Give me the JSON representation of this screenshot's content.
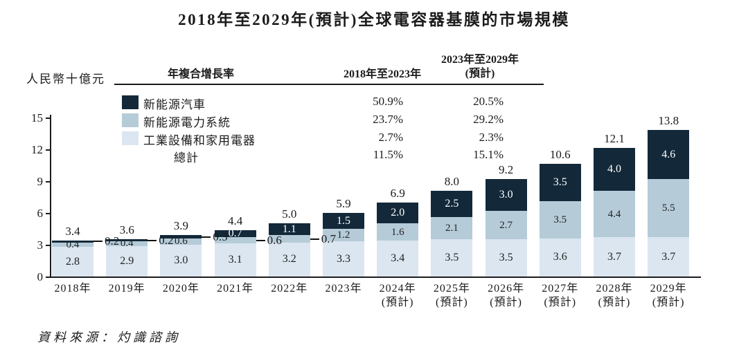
{
  "title": "2018年至2029年(預計)全球電容器基膜的市場規模",
  "y_axis_unit": "人民幣十億元",
  "cagr_table": {
    "header": {
      "title": "年複合增長率",
      "period1": "2018年至2023年",
      "period2_line1": "2023年至2029年",
      "period2_line2": "(預計)"
    },
    "rows": [
      {
        "label": "新能源汽車",
        "swatch_color": "#13293a",
        "cagr_2018_2023": "50.9%",
        "cagr_2023_2029": "20.5%"
      },
      {
        "label": "新能源電力系統",
        "swatch_color": "#b5cbd8",
        "cagr_2018_2023": "23.7%",
        "cagr_2023_2029": "29.2%"
      },
      {
        "label": "工業設備和家用電器",
        "swatch_color": "#dbe6f0",
        "cagr_2018_2023": "2.7%",
        "cagr_2023_2029": "2.3%"
      },
      {
        "label": "總計",
        "swatch_color": "",
        "cagr_2018_2023": "11.5%",
        "cagr_2023_2029": "15.1%"
      }
    ]
  },
  "chart_data": {
    "type": "bar",
    "stacked": true,
    "title": "2018年至2029年(預計)全球電容器基膜的市場規模",
    "ylabel": "人民幣十億元",
    "ylim": [
      0,
      15
    ],
    "yticks": [
      0,
      3,
      6,
      9,
      12,
      15
    ],
    "grid": false,
    "legend_position": "top-left-table",
    "categories": [
      {
        "year": "2018年",
        "note": ""
      },
      {
        "year": "2019年",
        "note": ""
      },
      {
        "year": "2020年",
        "note": ""
      },
      {
        "year": "2021年",
        "note": ""
      },
      {
        "year": "2022年",
        "note": ""
      },
      {
        "year": "2023年",
        "note": ""
      },
      {
        "year": "2024年",
        "note": "(預計)"
      },
      {
        "year": "2025年",
        "note": "(預計)"
      },
      {
        "year": "2026年",
        "note": "(預計)"
      },
      {
        "year": "2027年",
        "note": "(預計)"
      },
      {
        "year": "2028年",
        "note": "(預計)"
      },
      {
        "year": "2029年",
        "note": "(預計)"
      }
    ],
    "series": [
      {
        "name": "工業設備和家用電器",
        "color": "#dbe6f0",
        "values": [
          2.8,
          2.9,
          3.0,
          3.1,
          3.2,
          3.3,
          3.4,
          3.5,
          3.5,
          3.6,
          3.7,
          3.7
        ]
      },
      {
        "name": "新能源電力系統",
        "color": "#b5cbd8",
        "values": [
          0.4,
          0.4,
          0.6,
          0.6,
          0.7,
          1.2,
          1.6,
          2.1,
          2.7,
          3.5,
          4.4,
          5.5
        ]
      },
      {
        "name": "新能源汽車",
        "color": "#13293a",
        "values": [
          0.2,
          0.2,
          0.3,
          0.7,
          1.1,
          1.5,
          2.0,
          2.5,
          3.0,
          3.5,
          4.0,
          4.6
        ]
      }
    ],
    "totals": [
      "3.4",
      "3.6",
      "3.9",
      "4.4",
      "5.0",
      "5.9",
      "6.9",
      "8.0",
      "9.2",
      "10.6",
      "12.1",
      "13.8"
    ]
  },
  "source": "資料來源：灼識諮詢"
}
